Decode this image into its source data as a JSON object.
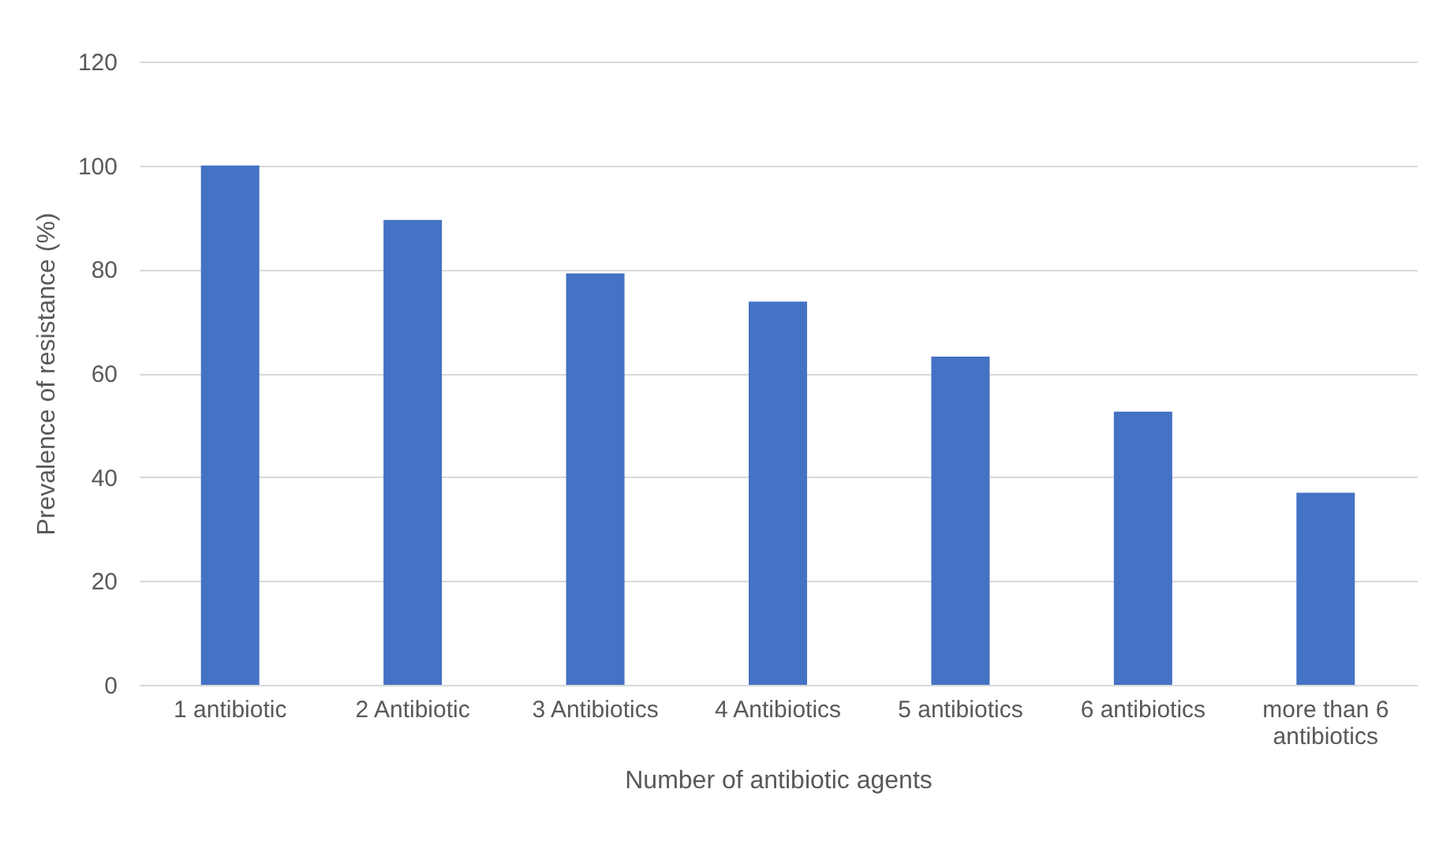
{
  "chart_data": {
    "type": "bar",
    "xlabel": "Number of antibiotic agents",
    "ylabel": "Prevalence of resistance (%)",
    "categories": [
      "1 antibiotic",
      "2 Antibiotic",
      "3 Antibiotics",
      "4 Antibiotics",
      "5 antibiotics",
      "6 antibiotics",
      "more than 6 antibiotics"
    ],
    "values": [
      100,
      89.5,
      79.2,
      73.8,
      63.2,
      52.6,
      37
    ],
    "color": "#4472c4",
    "ylim": [
      0,
      120
    ],
    "yticks": [
      0,
      20,
      40,
      60,
      80,
      100,
      120
    ],
    "grid": "y"
  }
}
